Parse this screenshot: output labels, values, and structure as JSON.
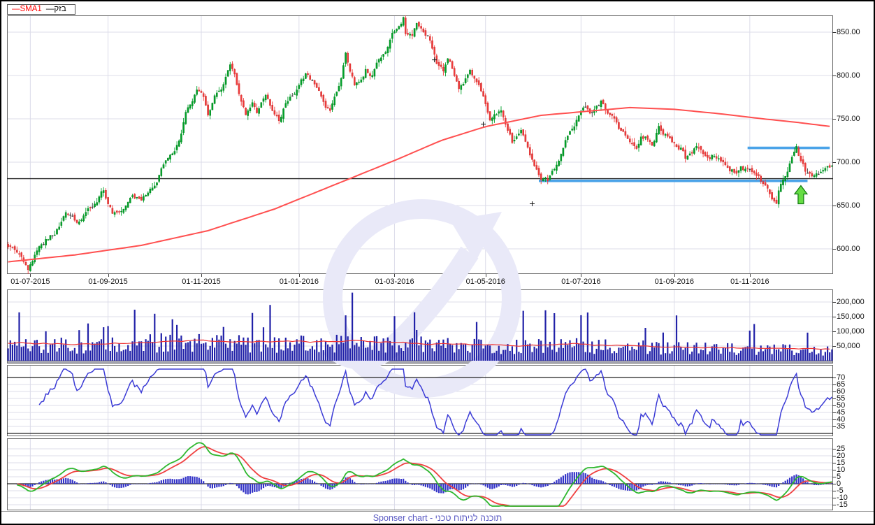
{
  "legend": {
    "items": [
      {
        "label": "SMA1",
        "color": "#ff0000"
      },
      {
        "label": "בזק",
        "color": "#000000"
      }
    ]
  },
  "footer": {
    "text": "Sponser chart - תוכנה לניתוח טכני",
    "color": "#5b5bc4"
  },
  "colors": {
    "candle_up": "#00a12b",
    "candle_up_border": "#007d14",
    "candle_down": "#ef3b3b",
    "candle_down_border": "#c82a2a",
    "doji": "#444444",
    "sma": "#ff5050",
    "volume_bar": "#2121a8",
    "volume_avg": "#ee3333",
    "rsi_line": "#3b3bd6",
    "macd_line": "#2eb82e",
    "macd_signal": "#f04040",
    "macd_hist": "#3434c8",
    "annotation_blue": "#4aa3e8",
    "arrow_green": "#66dd44",
    "arrow_border": "#117711",
    "level_black": "#222222",
    "grid": "#dcdce9",
    "panel_border": "#6a6a6a",
    "watermark": "#e9e9f8",
    "baseline_gray": "#a6a6b2"
  },
  "chart_data": [
    {
      "id": "price",
      "type": "candlestick",
      "symbol": "בזק",
      "overlay": "SMA1",
      "num_bars": 372,
      "ylim": [
        571,
        869
      ],
      "y_ticks": [
        850,
        800,
        750,
        700,
        650,
        600
      ],
      "x_ticks": [
        {
          "label": "01-07-2015",
          "index": 10
        },
        {
          "label": "01-09-2015",
          "index": 45
        },
        {
          "label": "01-11-2015",
          "index": 87
        },
        {
          "label": "01-01-2016",
          "index": 131
        },
        {
          "label": "01-03-2016",
          "index": 174
        },
        {
          "label": "01-05-2016",
          "index": 215
        },
        {
          "label": "01-07-2016",
          "index": 258
        },
        {
          "label": "01-09-2016",
          "index": 300
        },
        {
          "label": "01-11-2016",
          "index": 334
        }
      ],
      "close_anchors": [
        [
          0,
          600
        ],
        [
          2,
          603
        ],
        [
          5,
          592
        ],
        [
          9,
          575
        ],
        [
          15,
          606
        ],
        [
          21,
          618
        ],
        [
          26,
          641
        ],
        [
          31,
          629
        ],
        [
          35,
          641
        ],
        [
          39,
          652
        ],
        [
          43,
          668
        ],
        [
          47,
          641
        ],
        [
          51,
          648
        ],
        [
          56,
          660
        ],
        [
          60,
          656
        ],
        [
          65,
          670
        ],
        [
          68,
          685
        ],
        [
          71,
          704
        ],
        [
          75,
          716
        ],
        [
          78,
          735
        ],
        [
          80,
          758
        ],
        [
          82,
          768
        ],
        [
          85,
          785
        ],
        [
          88,
          775
        ],
        [
          90,
          757
        ],
        [
          93,
          778
        ],
        [
          97,
          791
        ],
        [
          100,
          812
        ],
        [
          102,
          800
        ],
        [
          104,
          780
        ],
        [
          107,
          757
        ],
        [
          110,
          771
        ],
        [
          112,
          760
        ],
        [
          116,
          775
        ],
        [
          119,
          757
        ],
        [
          122,
          749
        ],
        [
          125,
          767
        ],
        [
          128,
          779
        ],
        [
          131,
          790
        ],
        [
          134,
          800
        ],
        [
          136,
          795
        ],
        [
          138,
          789
        ],
        [
          141,
          777
        ],
        [
          143,
          767
        ],
        [
          145,
          761
        ],
        [
          148,
          780
        ],
        [
          150,
          796
        ],
        [
          152,
          822
        ],
        [
          154,
          801
        ],
        [
          156,
          787
        ],
        [
          159,
          794
        ],
        [
          161,
          805
        ],
        [
          164,
          799
        ],
        [
          167,
          817
        ],
        [
          170,
          830
        ],
        [
          172,
          845
        ],
        [
          175,
          857
        ],
        [
          178,
          868
        ],
        [
          179,
          851
        ],
        [
          182,
          843
        ],
        [
          184,
          860
        ],
        [
          186,
          854
        ],
        [
          189,
          847
        ],
        [
          191,
          834
        ],
        [
          193,
          817
        ],
        [
          196,
          804
        ],
        [
          198,
          822
        ],
        [
          200,
          810
        ],
        [
          203,
          787
        ],
        [
          205,
          794
        ],
        [
          208,
          805
        ],
        [
          210,
          794
        ],
        [
          212,
          787
        ],
        [
          215,
          768
        ],
        [
          217,
          747
        ],
        [
          219,
          752
        ],
        [
          222,
          762
        ],
        [
          224,
          747
        ],
        [
          227,
          724
        ],
        [
          229,
          728
        ],
        [
          231,
          738
        ],
        [
          234,
          721
        ],
        [
          236,
          704
        ],
        [
          238,
          694
        ],
        [
          240,
          685
        ],
        [
          243,
          681
        ],
        [
          245,
          692
        ],
        [
          248,
          702
        ],
        [
          250,
          713
        ],
        [
          252,
          728
        ],
        [
          255,
          742
        ],
        [
          257,
          752
        ],
        [
          260,
          762
        ],
        [
          262,
          754
        ],
        [
          265,
          766
        ],
        [
          267,
          771
        ],
        [
          270,
          757
        ],
        [
          273,
          747
        ],
        [
          275,
          737
        ],
        [
          278,
          731
        ],
        [
          280,
          725
        ],
        [
          283,
          717
        ],
        [
          285,
          731
        ],
        [
          288,
          727
        ],
        [
          290,
          718
        ],
        [
          293,
          741
        ],
        [
          295,
          733
        ],
        [
          298,
          725
        ],
        [
          300,
          721
        ],
        [
          303,
          716
        ],
        [
          305,
          704
        ],
        [
          308,
          711
        ],
        [
          310,
          717
        ],
        [
          313,
          707
        ],
        [
          315,
          701
        ],
        [
          318,
          707
        ],
        [
          320,
          702
        ],
        [
          323,
          697
        ],
        [
          325,
          693
        ],
        [
          328,
          689
        ],
        [
          330,
          697
        ],
        [
          333,
          691
        ],
        [
          335,
          685
        ],
        [
          338,
          681
        ],
        [
          340,
          675
        ],
        [
          342,
          667
        ],
        [
          344,
          657
        ],
        [
          346,
          654
        ],
        [
          347,
          667
        ],
        [
          349,
          679
        ],
        [
          351,
          691
        ],
        [
          352,
          701
        ],
        [
          354,
          709
        ],
        [
          355,
          714
        ],
        [
          356,
          705
        ],
        [
          358,
          697
        ],
        [
          359,
          691
        ],
        [
          361,
          685
        ],
        [
          362,
          680
        ],
        [
          364,
          683
        ],
        [
          366,
          687
        ],
        [
          368,
          693
        ],
        [
          371,
          697
        ]
      ],
      "sma1_anchors": [
        [
          0,
          585
        ],
        [
          30,
          593
        ],
        [
          60,
          604
        ],
        [
          90,
          621
        ],
        [
          120,
          646
        ],
        [
          150,
          677
        ],
        [
          175,
          703
        ],
        [
          195,
          725
        ],
        [
          215,
          741
        ],
        [
          240,
          754
        ],
        [
          262,
          759
        ],
        [
          280,
          763
        ],
        [
          300,
          761
        ],
        [
          320,
          756
        ],
        [
          340,
          750
        ],
        [
          355,
          746
        ],
        [
          371,
          741
        ]
      ],
      "annotations": {
        "black_hline_price": 681,
        "blue_segments": [
          {
            "price": 716.5,
            "from_index": 333,
            "to_index": 370
          },
          {
            "price": 678.5,
            "from_index": 239,
            "to_index": 360
          }
        ],
        "arrow_up": {
          "index": 357,
          "price": 673
        },
        "cross_markers": [
          [
            192,
            818
          ],
          [
            214,
            744
          ],
          [
            236,
            652
          ]
        ]
      }
    },
    {
      "id": "volume",
      "type": "bar",
      "ylim": [
        0,
        243000
      ],
      "y_ticks": [
        200000,
        150000,
        100000,
        50000
      ],
      "avg_anchors": [
        [
          0,
          60000
        ],
        [
          40,
          56000
        ],
        [
          80,
          68000
        ],
        [
          120,
          63000
        ],
        [
          160,
          66000
        ],
        [
          200,
          57000
        ],
        [
          230,
          52000
        ],
        [
          255,
          58000
        ],
        [
          280,
          50000
        ],
        [
          305,
          46000
        ],
        [
          330,
          43000
        ],
        [
          371,
          40000
        ]
      ],
      "spikes": [
        [
          66,
          160000
        ],
        [
          76,
          122000
        ],
        [
          118,
          190000
        ],
        [
          155,
          232000
        ],
        [
          174,
          152000
        ],
        [
          183,
          165000
        ],
        [
          211,
          132000
        ],
        [
          232,
          170000
        ],
        [
          246,
          162000
        ],
        [
          258,
          155000
        ],
        [
          287,
          112000
        ],
        [
          336,
          125000
        ]
      ]
    },
    {
      "id": "rsi",
      "type": "line",
      "period": 14,
      "ylim": [
        28,
        77.5
      ],
      "y_ticks": [
        70,
        65,
        60,
        55,
        50,
        45,
        40,
        35
      ],
      "levels": [
        70,
        30
      ]
    },
    {
      "id": "macd",
      "type": "macd",
      "params": [
        12,
        26,
        9
      ],
      "ylim": [
        -17.5,
        32.5
      ],
      "y_ticks": [
        25,
        20,
        15,
        10,
        5,
        0,
        -5,
        -10,
        -15
      ],
      "zero_line": 0
    }
  ]
}
